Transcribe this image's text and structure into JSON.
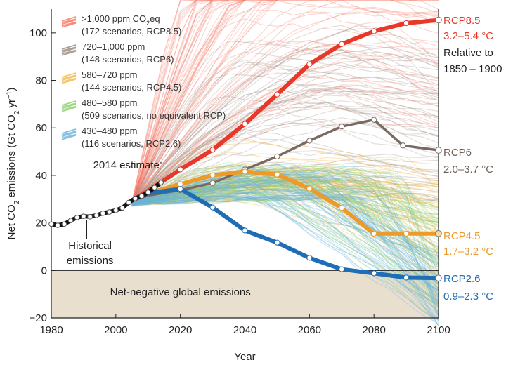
{
  "chart_data": {
    "type": "line",
    "xlabel": "Year",
    "ylabel_parts": [
      "Net CO",
      "2",
      " emissions (Gt CO",
      "2",
      " yr",
      "−1",
      ")"
    ],
    "xlim": [
      1980,
      2100
    ],
    "ylim": [
      -20,
      110
    ],
    "xticks": [
      1980,
      2000,
      2020,
      2040,
      2060,
      2080,
      2100
    ],
    "yticks": [
      -20,
      0,
      20,
      40,
      60,
      80,
      100
    ],
    "negative_region_label": "Net-negative global emissions",
    "annotation_2014": "2014 estimate",
    "historical_label_line1": "Historical",
    "historical_label_line2": "emissions",
    "relative_to_line1": "Relative to",
    "relative_to_line2": "1850 – 1900",
    "historical": {
      "x": [
        1980,
        1982,
        1984,
        1986,
        1988,
        1990,
        1992,
        1994,
        1996,
        1998,
        2000,
        2002,
        2004,
        2006,
        2008,
        2010,
        2012,
        2014
      ],
      "y": [
        19.5,
        19.0,
        19.5,
        21.0,
        22.3,
        22.8,
        22.6,
        23.2,
        24.1,
        24.6,
        25.3,
        26.3,
        28.6,
        30.3,
        31.3,
        32.9,
        34.9,
        37.0
      ]
    },
    "legend": [
      {
        "line1": ">1,000 ppm CO",
        "sub": "2",
        "line1_tail": "eq",
        "line2": "(172 scenarios, RCP8.5)",
        "color": "#f4735f"
      },
      {
        "line1": "720–1,000 ppm",
        "sub": "",
        "line1_tail": "",
        "line2": "(148 scenarios, RCP6)",
        "color": "#9b8a80"
      },
      {
        "line1": "580–720 ppm",
        "sub": "",
        "line1_tail": "",
        "line2": "(144 scenarios, RCP4.5)",
        "color": "#f2b94e"
      },
      {
        "line1": "480–580 ppm",
        "sub": "",
        "line1_tail": "",
        "line2": "(509 scenarios, no equivalent RCP)",
        "color": "#8fcf6c"
      },
      {
        "line1": "430–480 ppm",
        "sub": "",
        "line1_tail": "",
        "line2": "(116 scenarios, RCP2.6)",
        "color": "#6ab1dc"
      }
    ],
    "series": [
      {
        "name": "RCP8.5",
        "range": "3.2–5.4 °C",
        "color": "#e8382a",
        "x": [
          2005,
          2010,
          2020,
          2030,
          2040,
          2050,
          2060,
          2070,
          2080,
          2090,
          2100
        ],
        "y": [
          29.5,
          33.5,
          42.5,
          50.8,
          61.7,
          74.1,
          86.8,
          95.3,
          100.7,
          104.1,
          105.4
        ]
      },
      {
        "name": "RCP6",
        "range": "2.0–3.7 °C",
        "color": "#7a6a62",
        "x": [
          2005,
          2010,
          2020,
          2030,
          2040,
          2050,
          2060,
          2070,
          2080,
          2089,
          2100
        ],
        "y": [
          29.5,
          31.5,
          33.8,
          36.8,
          42.5,
          48.0,
          54.6,
          60.6,
          63.4,
          52.6,
          50.6
        ]
      },
      {
        "name": "RCP4.5",
        "range": "1.7–3.2 °C",
        "color": "#ec9a2a",
        "x": [
          2005,
          2010,
          2020,
          2030,
          2040,
          2050,
          2060,
          2070,
          2080,
          2090,
          2100
        ],
        "y": [
          29.5,
          32.5,
          36.3,
          40.1,
          41.6,
          40.4,
          34.5,
          26.3,
          15.5,
          15.5,
          15.5
        ]
      },
      {
        "name": "RCP2.6",
        "range": "0.9–2.3 °C",
        "color": "#1f6db4",
        "x": [
          2005,
          2010,
          2020,
          2030,
          2040,
          2050,
          2060,
          2070,
          2080,
          2090,
          2100
        ],
        "y": [
          29.5,
          32.5,
          34.3,
          26.5,
          16.8,
          11.7,
          5.3,
          0.5,
          -1.2,
          -3.0,
          -3.2
        ]
      }
    ]
  }
}
